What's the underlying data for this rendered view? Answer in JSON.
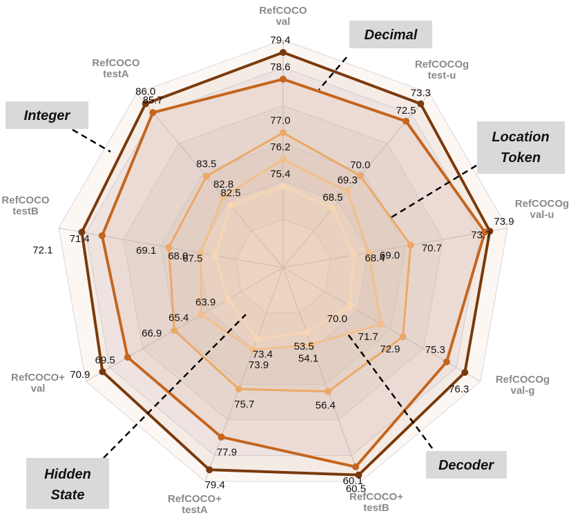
{
  "chart_data": {
    "type": "radar",
    "axes": [
      {
        "name": "RefCOCO",
        "split": "val"
      },
      {
        "name": "RefCOCOg",
        "split": "test-u"
      },
      {
        "name": "RefCOCOg",
        "split": "val-u"
      },
      {
        "name": "RefCOCOg",
        "split": "val-g"
      },
      {
        "name": "RefCOCO+",
        "split": "testB"
      },
      {
        "name": "RefCOCO+",
        "split": "testA"
      },
      {
        "name": "RefCOCO+",
        "split": "val"
      },
      {
        "name": "RefCOCO",
        "split": "testB"
      },
      {
        "name": "RefCOCO",
        "split": "testA"
      }
    ],
    "series": [
      {
        "name": "Decimal",
        "color": "#7a3a0c",
        "values": [
          79.4,
          73.3,
          73.9,
          76.3,
          60.5,
          79.4,
          70.9,
          72.1,
          86.0
        ]
      },
      {
        "name": "Integer",
        "color": "#c5651e",
        "values": [
          78.6,
          72.5,
          73.7,
          75.3,
          60.1,
          77.9,
          69.5,
          71.4,
          85.7
        ]
      },
      {
        "name": "Location Token",
        "color": "#eca866",
        "values": [
          77.0,
          70.0,
          70.7,
          72.9,
          56.4,
          75.7,
          66.9,
          69.1,
          83.5
        ]
      },
      {
        "name": "Decoder",
        "color": "#f2bf8c",
        "values": [
          76.2,
          69.3,
          69.0,
          71.7,
          54.1,
          73.9,
          65.4,
          68.0,
          82.8
        ]
      },
      {
        "name": "Hidden State",
        "color": "#f7d6b5",
        "values": [
          75.4,
          68.5,
          68.4,
          70.0,
          53.5,
          73.4,
          63.9,
          67.5,
          82.5
        ]
      }
    ],
    "callouts": [
      "Decimal",
      "Integer",
      "Location Token",
      "Decoder",
      "Hidden State"
    ]
  }
}
